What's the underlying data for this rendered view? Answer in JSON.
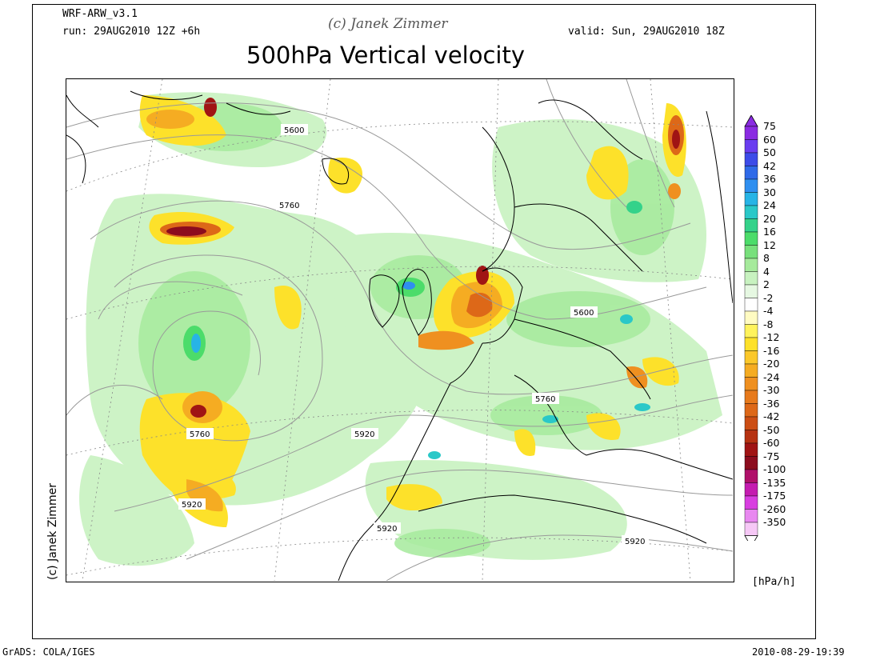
{
  "header": {
    "model": "WRF-ARW_v3.1",
    "run": "run: 29AUG2010 12Z +6h",
    "copyright": "(c) Janek Zimmer",
    "valid": "valid: Sun, 29AUG2010 18Z",
    "title": "500hPa Vertical velocity"
  },
  "side_credit": "(c) Janek Zimmer",
  "footer": {
    "left": "GrADS: COLA/IGES",
    "right": "2010-08-29-19:39"
  },
  "colorbar": {
    "units": "[hPa/h]",
    "labels": [
      "75",
      "60",
      "50",
      "42",
      "36",
      "30",
      "24",
      "20",
      "16",
      "12",
      "8",
      "4",
      "2",
      "-2",
      "-4",
      "-8",
      "-12",
      "-16",
      "-20",
      "-24",
      "-30",
      "-36",
      "-42",
      "-50",
      "-60",
      "-75",
      "-100",
      "-135",
      "-175",
      "-260",
      "-350"
    ],
    "colors": [
      "#8a2be2",
      "#6a3df0",
      "#3c4be8",
      "#2f6ae8",
      "#2f8ff0",
      "#27b4e6",
      "#2ac8c8",
      "#34d28a",
      "#4cdc6a",
      "#78e07c",
      "#a6ea9c",
      "#c8f2c0",
      "#e6f8e2",
      "#ffffff",
      "#fffbc2",
      "#fff35c",
      "#fde12a",
      "#fbc82a",
      "#f5ac22",
      "#ef9020",
      "#e77a1c",
      "#dd6818",
      "#cc4e14",
      "#b63212",
      "#a01414",
      "#8c0c1e",
      "#b0106a",
      "#c41cb0",
      "#d83ee0",
      "#e888f0",
      "#f6c8f6"
    ]
  },
  "map": {
    "contour_labels": [
      "5600",
      "5760",
      "5760",
      "5920",
      "5920",
      "5600",
      "5760",
      "5920",
      "5920"
    ]
  }
}
